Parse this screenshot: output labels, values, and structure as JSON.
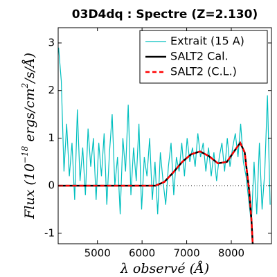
{
  "chart_data": {
    "type": "line",
    "title": "03D4dq : Spectre (Z=2.130)",
    "xlabel": "λ observé (Å)",
    "ylabel": [
      "Flux (10",
      "−18",
      " ergs/cm",
      "2",
      "/s/Å)"
    ],
    "xlim": [
      4120,
      8900
    ],
    "ylim": [
      -1.22,
      3.32
    ],
    "xticks": [
      5000,
      6000,
      7000,
      8000
    ],
    "yticks": [
      -1,
      0,
      1,
      2,
      3
    ],
    "hline": 0,
    "legend": "upper right",
    "series": [
      {
        "name": "Extrait (15 A)",
        "color": "#00bfbf",
        "dash": "",
        "x": [
          4130,
          4190,
          4250,
          4310,
          4370,
          4430,
          4490,
          4550,
          4610,
          4670,
          4730,
          4790,
          4850,
          4910,
          4970,
          5030,
          5090,
          5150,
          5210,
          5270,
          5330,
          5390,
          5450,
          5510,
          5570,
          5630,
          5690,
          5750,
          5810,
          5870,
          5930,
          5990,
          6050,
          6110,
          6170,
          6230,
          6290,
          6350,
          6410,
          6470,
          6530,
          6590,
          6650,
          6710,
          6770,
          6830,
          6890,
          6950,
          7010,
          7070,
          7130,
          7190,
          7250,
          7310,
          7370,
          7430,
          7490,
          7550,
          7610,
          7670,
          7730,
          7790,
          7850,
          7910,
          7970,
          8030,
          8090,
          8150,
          8210,
          8270,
          8330,
          8390,
          8450,
          8510,
          8570,
          8630,
          8690,
          8750,
          8810,
          8870
        ],
        "values": [
          2.9,
          2.2,
          0.3,
          1.3,
          0.2,
          0.9,
          -0.3,
          1.6,
          0.1,
          0.8,
          -0.2,
          1.2,
          0.4,
          1.0,
          -0.3,
          0.9,
          0.2,
          1.1,
          -0.4,
          0.7,
          1.5,
          0.0,
          0.6,
          -0.6,
          1.0,
          0.3,
          1.7,
          -0.2,
          0.8,
          0.1,
          1.3,
          -0.5,
          0.6,
          0.2,
          1.0,
          -0.3,
          0.5,
          -0.6,
          0.7,
          0.1,
          -0.4,
          0.4,
          0.9,
          -0.2,
          0.6,
          0.3,
          0.9,
          0.2,
          1.0,
          0.5,
          0.8,
          0.4,
          1.1,
          0.6,
          0.9,
          0.3,
          0.8,
          0.2,
          0.7,
          0.1,
          0.6,
          0.9,
          0.3,
          1.0,
          0.4,
          0.8,
          1.1,
          0.6,
          1.3,
          0.5,
          0.2,
          -0.3,
          -0.8,
          0.5,
          -0.6,
          0.9,
          -0.5,
          0.3,
          1.9,
          -0.4
        ]
      },
      {
        "name": "SALT2 Cal.",
        "color": "#000000",
        "dash": "",
        "x": [
          4130,
          5000,
          6000,
          6300,
          6500,
          6700,
          6900,
          7100,
          7300,
          7500,
          7700,
          7900,
          8100,
          8200,
          8300,
          8400,
          8450,
          8480
        ],
        "values": [
          0,
          0,
          0,
          0,
          0.08,
          0.28,
          0.5,
          0.66,
          0.72,
          0.62,
          0.47,
          0.5,
          0.77,
          0.9,
          0.7,
          -0.1,
          -0.7,
          -1.22
        ]
      },
      {
        "name": "SALT2 (C.L.)",
        "color": "#ff0000",
        "dash": "6 4",
        "x": [
          4130,
          5000,
          6000,
          6300,
          6500,
          6700,
          6900,
          7100,
          7300,
          7500,
          7700,
          7900,
          8100,
          8200,
          8300,
          8400,
          8450,
          8480
        ],
        "values": [
          0,
          0,
          0,
          0,
          0.08,
          0.28,
          0.5,
          0.66,
          0.72,
          0.62,
          0.47,
          0.5,
          0.77,
          0.9,
          0.7,
          -0.1,
          -0.7,
          -1.22
        ]
      }
    ]
  }
}
